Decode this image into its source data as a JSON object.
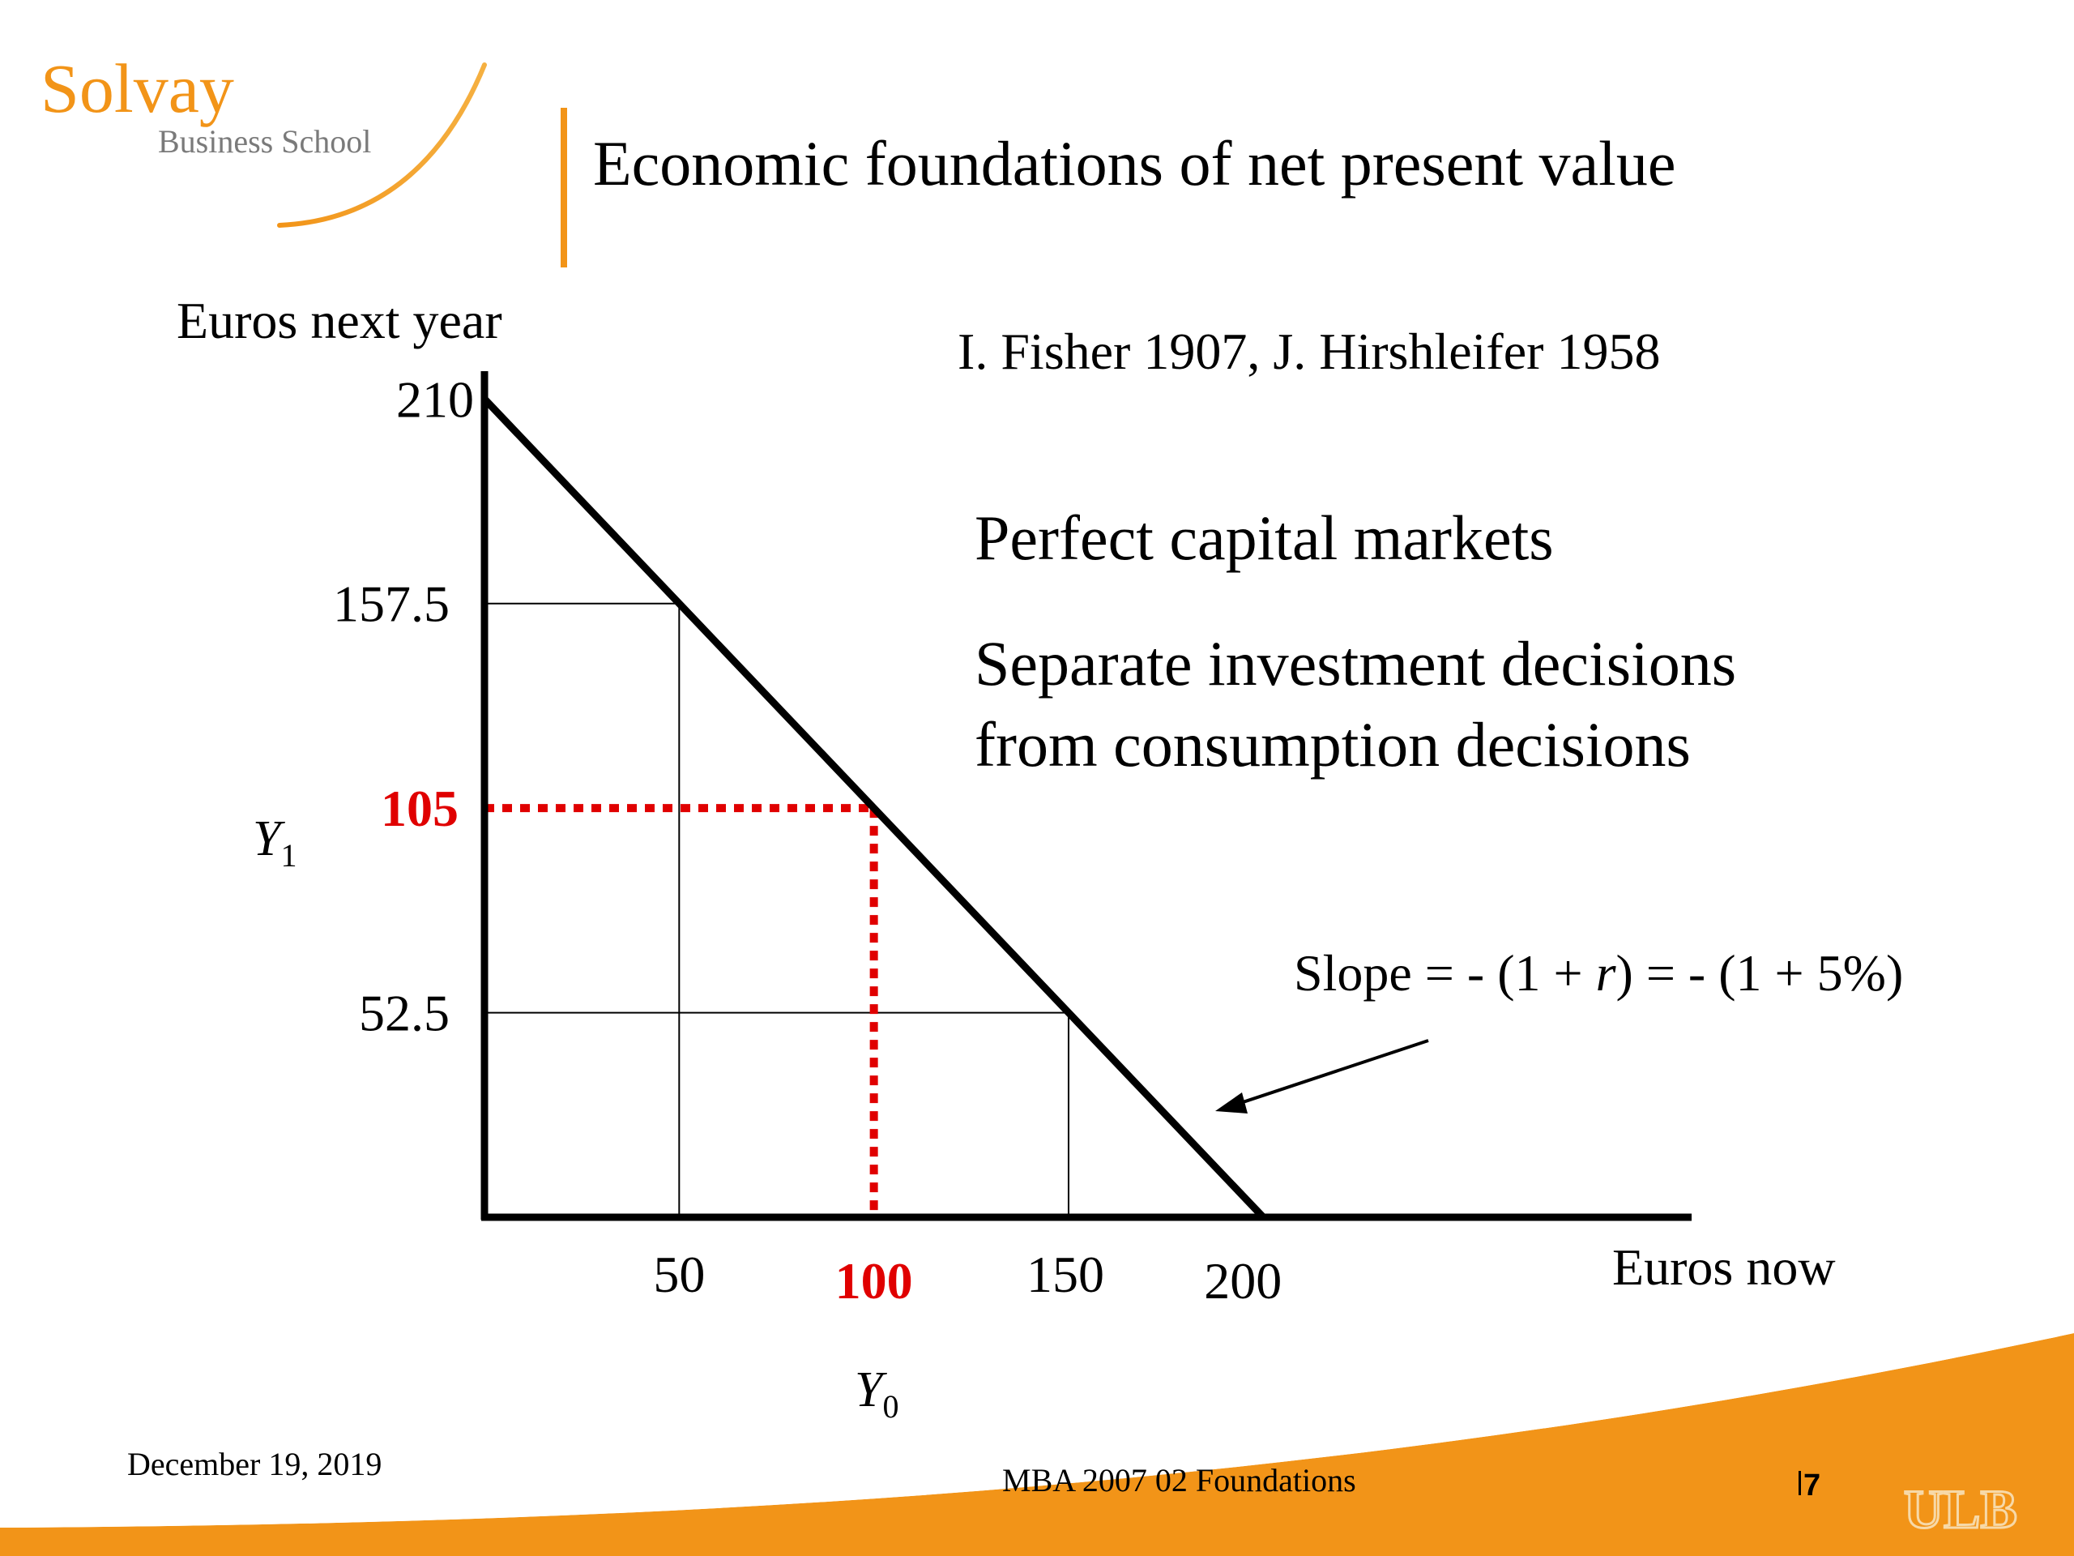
{
  "logo": {
    "name": "Solvay",
    "subtitle": "Business School"
  },
  "slide": {
    "title": "Economic foundations of net present value",
    "citation": "I. Fisher 1907, J. Hirshleifer 1958",
    "bullets": [
      "Perfect capital markets",
      "Separate investment decisions",
      "from consumption decisions"
    ]
  },
  "chart_data": {
    "type": "line",
    "ylabel": "Euros next year",
    "xlabel": "Euros now",
    "xlim": [
      0,
      310
    ],
    "ylim": [
      0,
      240
    ],
    "series": [
      {
        "points": [
          [
            0,
            210
          ],
          [
            200,
            0
          ]
        ]
      }
    ],
    "guides": [
      {
        "x": 50,
        "y": 157.5,
        "style": "thin"
      },
      {
        "x": 150,
        "y": 52.5,
        "style": "thin"
      },
      {
        "x": 100,
        "y": 105,
        "style": "dotted-red"
      }
    ],
    "y_ticks": [
      {
        "value": 210,
        "label": "210",
        "highlight": false
      },
      {
        "value": 157.5,
        "label": "157.5",
        "highlight": false
      },
      {
        "value": 105,
        "label": "105",
        "highlight": true
      },
      {
        "value": 52.5,
        "label": "52.5",
        "highlight": false
      }
    ],
    "x_ticks": [
      {
        "value": 50,
        "label": "50",
        "highlight": false
      },
      {
        "value": 100,
        "label": "100",
        "highlight": true
      },
      {
        "value": 150,
        "label": "150",
        "highlight": false
      },
      {
        "value": 200,
        "label": "200",
        "highlight": false
      }
    ],
    "y_symbol": {
      "letter": "Y",
      "sub": "1"
    },
    "x_symbol": {
      "letter": "Y",
      "sub": "0"
    },
    "slope_annotation": {
      "prefix": "Slope = - (1 + ",
      "variable": "r",
      "suffix": ") = - (1 + 5%)"
    }
  },
  "footer": {
    "date": "December 19, 2019",
    "course": "MBA 2007 02 Foundations",
    "page": "7",
    "university_logo": "ULB"
  },
  "colors": {
    "accent": "#F29418",
    "highlight": "#E00000",
    "text": "#000000"
  }
}
